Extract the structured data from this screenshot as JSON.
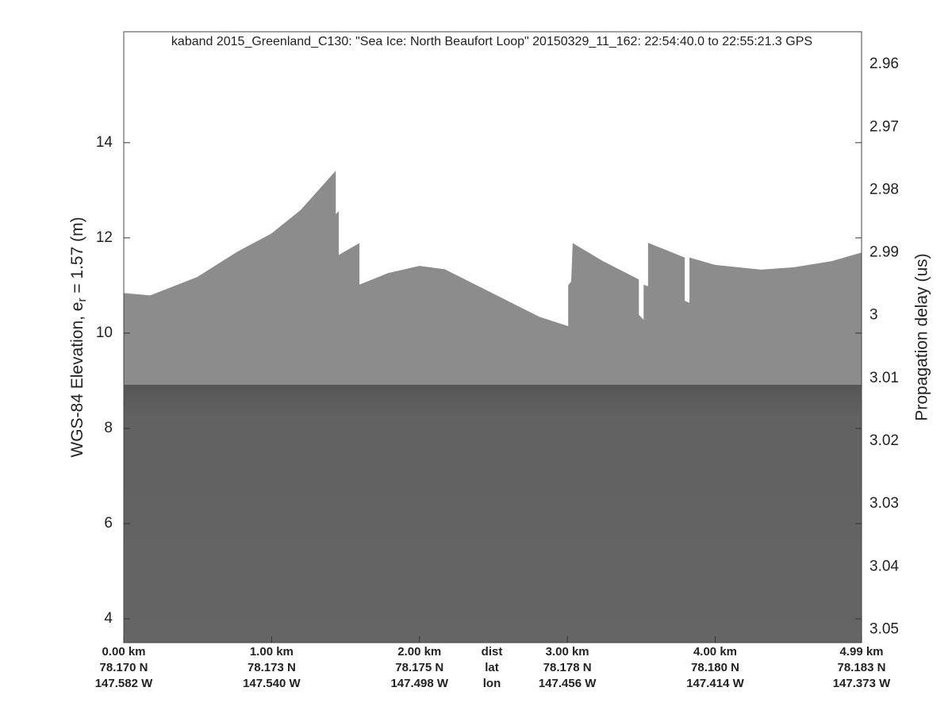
{
  "chart_data": {
    "type": "echogram",
    "title": "kaband 2015_Greenland_C130: \"Sea Ice: North Beaufort Loop\"  20150329_11_162: 22:54:40.0 to 22:55:21.3 GPS",
    "ylabel": {
      "main": "WGS-84 Elevation, e",
      "sub": "r",
      "tail": " = 1.57 (m)"
    },
    "y2label": "Propagation delay (us)",
    "color": "#8c8c8c",
    "x": [
      0,
      0.18,
      0.5,
      0.77,
      1.0,
      1.2,
      1.43,
      1.43,
      1.45,
      1.45,
      1.59,
      1.59,
      1.79,
      2.0,
      2.17,
      2.49,
      2.81,
      3.01,
      3.01,
      3.03,
      3.04,
      3.24,
      3.48,
      3.48,
      3.52,
      3.52,
      3.55,
      3.55,
      3.79,
      3.79,
      3.83,
      3.83,
      4.0,
      4.31,
      4.53,
      4.79,
      4.99
    ],
    "values": [
      10.83,
      10.78,
      11.17,
      11.7,
      12.08,
      12.58,
      13.38,
      12.47,
      12.53,
      11.62,
      11.87,
      11.0,
      11.25,
      11.4,
      11.33,
      10.83,
      10.33,
      10.13,
      11.0,
      11.08,
      11.87,
      11.5,
      11.12,
      10.38,
      10.25,
      11.0,
      10.97,
      11.88,
      11.58,
      10.67,
      10.62,
      11.57,
      11.42,
      11.32,
      11.37,
      11.5,
      11.68
    ],
    "xlim": [
      0,
      4.99
    ],
    "xticks": [
      {
        "value": 0,
        "label": "0.00 km"
      },
      {
        "value": 1,
        "label": "1.00 km"
      },
      {
        "value": 2,
        "label": "2.00 km"
      },
      {
        "value": 3,
        "label": "3.00 km"
      },
      {
        "value": 4,
        "label": "4.00 km"
      },
      {
        "value": 4.99,
        "label": "4.99 km"
      }
    ],
    "xtick_lat": [
      "78.170 N",
      "78.173 N",
      "78.175 N",
      "78.178 N",
      "78.180 N",
      "78.183 N"
    ],
    "xtick_lon": [
      "147.582 W",
      "147.540 W",
      "147.498 W",
      "147.456 W",
      "147.414 W",
      "147.373 W"
    ],
    "xtick_rows": [
      "dist",
      "lat",
      "lon"
    ],
    "ylim": [
      3.5,
      16.33
    ],
    "yticks": [
      4,
      6,
      8,
      10,
      12,
      14
    ],
    "y2lim": [
      3.0521,
      2.9548
    ],
    "y2ticks": [
      2.96,
      2.97,
      2.98,
      2.99,
      3,
      3.01,
      3.02,
      3.03,
      3.04,
      3.05
    ]
  }
}
